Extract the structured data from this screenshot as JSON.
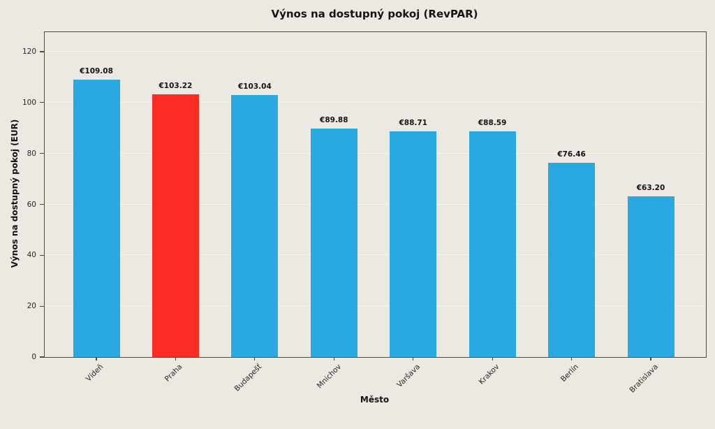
{
  "colors": {
    "background": "#ECE9E3",
    "bar_default": "#29A9E0",
    "bar_highlight": "#FB2C24",
    "spine": "#4a4a4a",
    "gridline": "#f7f5f1",
    "text": "#141414"
  },
  "chart_data": {
    "type": "bar",
    "title": "Výnos na dostupný pokoj (RevPAR)",
    "xlabel": "Město",
    "ylabel": "Výnos na dostupný pokoj (EUR)",
    "categories": [
      "Vídeň",
      "Praha",
      "Budapešť",
      "Mnichov",
      "Varšava",
      "Krakov",
      "Berlín",
      "Bratislava"
    ],
    "values": [
      109.08,
      103.22,
      103.04,
      89.88,
      88.71,
      88.59,
      76.46,
      63.2
    ],
    "value_labels": [
      "€109.08",
      "€103.22",
      "€103.04",
      "€89.88",
      "€88.71",
      "€88.59",
      "€76.46",
      "€63.20"
    ],
    "highlight_index": 1,
    "highlighted_category": "Praha",
    "yticks": [
      0,
      20,
      40,
      60,
      80,
      100,
      120
    ],
    "ylim": [
      0,
      127.7
    ],
    "grid": true,
    "legend_position": "none",
    "xtick_rotation": 45
  }
}
